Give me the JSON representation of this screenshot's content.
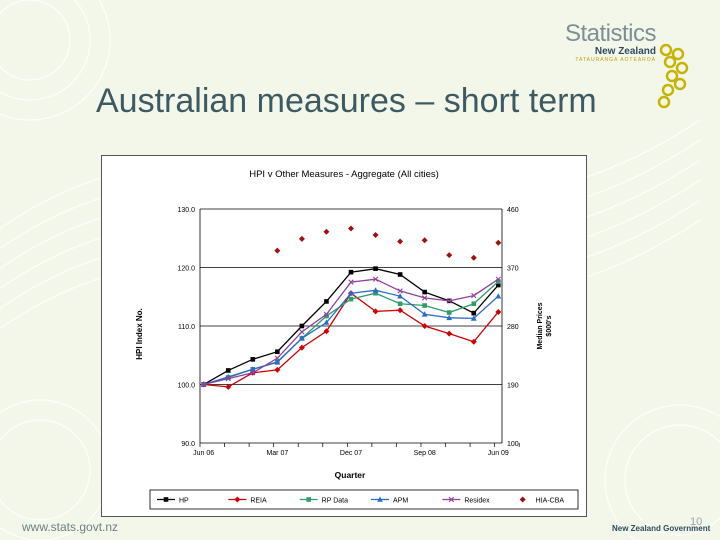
{
  "slide": {
    "title": "Australian measures – short term",
    "footer_url": "www.stats.govt.nz",
    "footer_gov": "New Zealand Government",
    "page_number": "10"
  },
  "logo": {
    "word": "Statistics",
    "sub": "New Zealand",
    "maori": "TATAURANGA AOTEAROA"
  },
  "colors": {
    "title": "#3d5a63",
    "background": "#f3f7ea",
    "HP": "#000000",
    "REIA": "#d10000",
    "RP Data": "#2e9e6a",
    "APM": "#2a6cc9",
    "Residex": "#9040a0",
    "HIA-CBA": "#a01010"
  },
  "chart_data": {
    "type": "line",
    "title": "HPI v Other Measures - Aggregate (All cities)",
    "xlabel": "Quarter",
    "ylabel": "HPI Index No.",
    "y2label_line1": "Median Prices",
    "y2label_line2": "$000's",
    "x_tick_labels": [
      "Jun 06",
      "Mar 07",
      "Dec 07",
      "Sep 08",
      "Jun 09"
    ],
    "x_tick_indices": [
      0,
      3,
      6,
      9,
      12
    ],
    "ylim": [
      90,
      130
    ],
    "y_ticks": [
      "90.0",
      "100.0",
      "110.0",
      "120.0",
      "130.0"
    ],
    "y_tick_values": [
      90,
      100,
      110,
      120,
      130
    ],
    "y2lim": [
      100,
      460
    ],
    "y2_ticks": [
      "100",
      "190",
      "280",
      "370",
      "460"
    ],
    "y2_tick_values": [
      100,
      190,
      280,
      370,
      460
    ],
    "grid": "horizontal",
    "legend_position": "bottom",
    "x_count": 13,
    "series": [
      {
        "name": "HP",
        "axis": "left",
        "marker": "square",
        "values": [
          100,
          102.4,
          104.3,
          105.6,
          110.0,
          114.2,
          119.2,
          119.8,
          118.8,
          115.8,
          114.3,
          112.2,
          117.0
        ]
      },
      {
        "name": "REIA",
        "axis": "left",
        "marker": "diamond",
        "values": [
          100,
          99.6,
          102.0,
          102.5,
          106.3,
          109.1,
          115.6,
          112.5,
          112.7,
          110.0,
          108.7,
          107.3,
          112.4
        ]
      },
      {
        "name": "RP Data",
        "axis": "left",
        "marker": "square",
        "values": [
          100,
          101.2,
          102.6,
          103.9,
          107.9,
          111.7,
          114.6,
          115.6,
          113.8,
          113.5,
          112.3,
          113.8,
          117.6
        ]
      },
      {
        "name": "APM",
        "axis": "left",
        "marker": "triangle",
        "values": [
          100,
          101.3,
          102.6,
          103.8,
          107.9,
          110.6,
          115.6,
          116.1,
          115.1,
          112.0,
          111.4,
          111.3,
          115.1
        ]
      },
      {
        "name": "Residex",
        "axis": "left",
        "marker": "cross",
        "values": [
          100,
          101.0,
          102.0,
          104.5,
          109.0,
          112.0,
          117.5,
          118.0,
          116.0,
          114.8,
          114.3,
          115.2,
          118.0
        ]
      },
      {
        "name": "HIA-CBA",
        "axis": "right",
        "marker": "diamond",
        "values": [
          null,
          null,
          null,
          396,
          414,
          425,
          430,
          420,
          410,
          412,
          389,
          385,
          408
        ]
      }
    ]
  }
}
